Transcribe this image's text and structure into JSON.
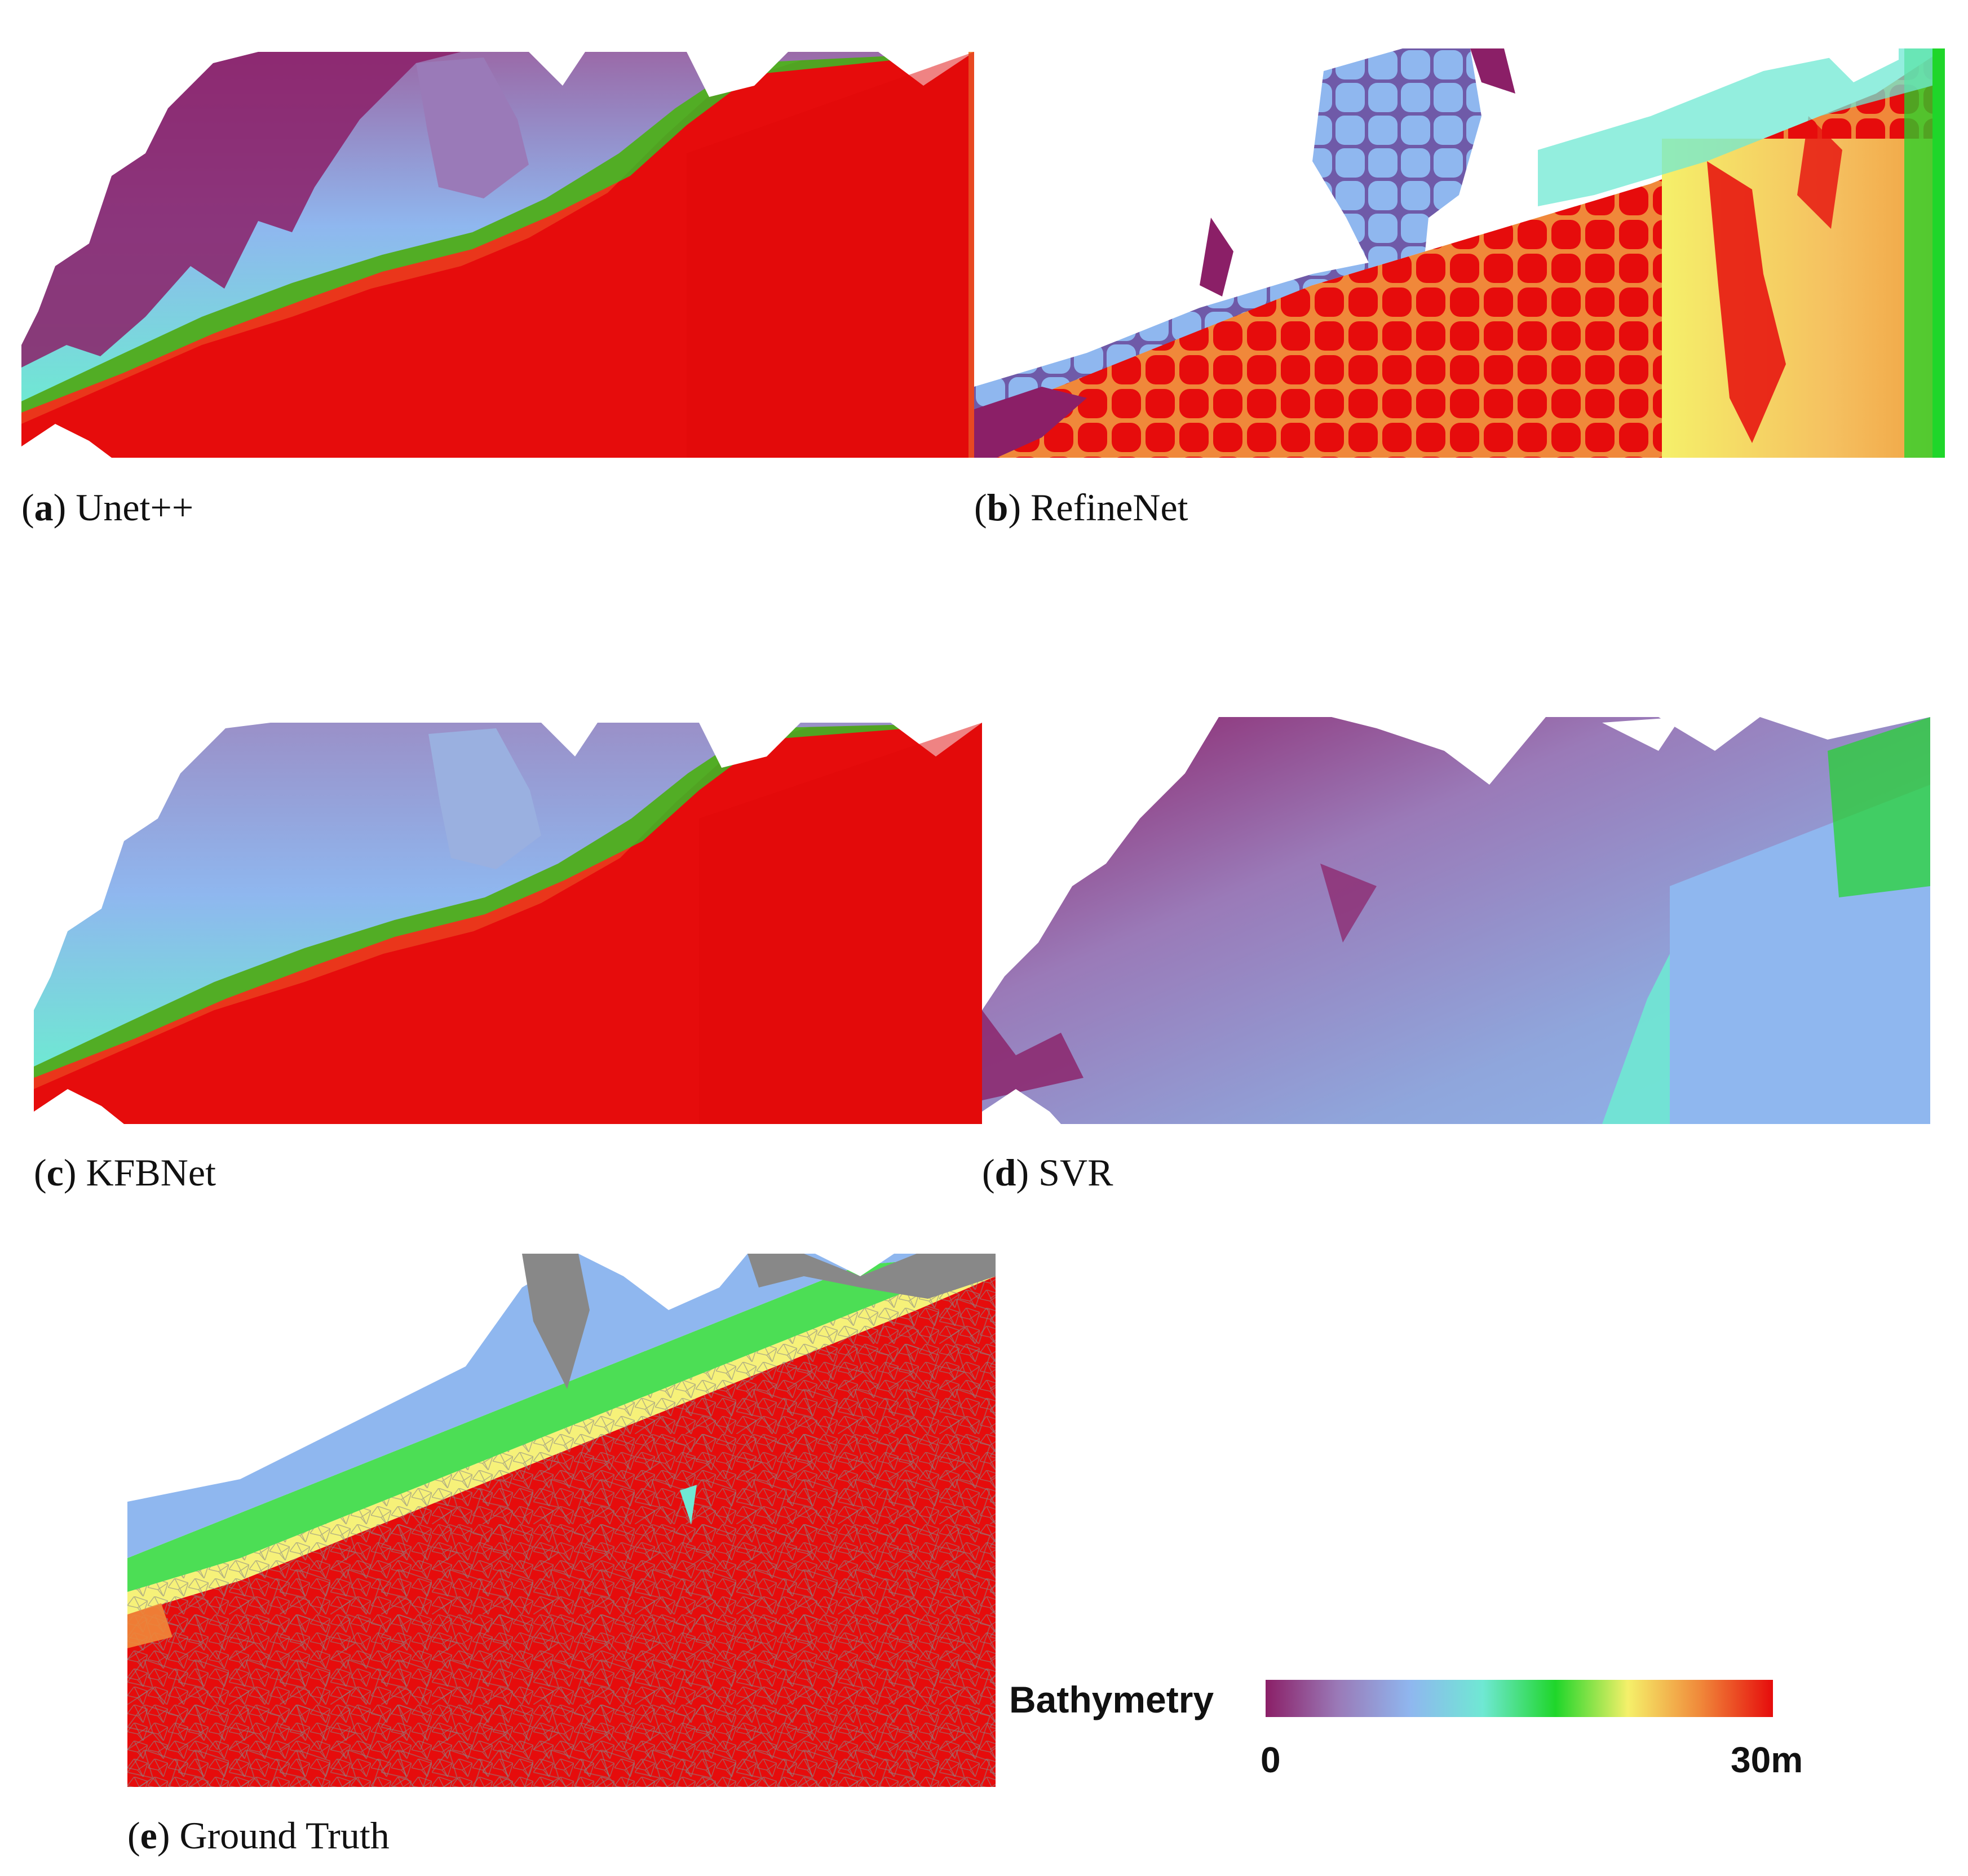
{
  "panels": [
    {
      "letter": "a",
      "name": "Unet++"
    },
    {
      "letter": "b",
      "name": "RefineNet"
    },
    {
      "letter": "c",
      "name": "KFBNet"
    },
    {
      "letter": "d",
      "name": "SVR"
    },
    {
      "letter": "e",
      "name": "Ground Truth"
    }
  ],
  "legend": {
    "title": "Bathymetry",
    "min_label": "0",
    "max_label": "30m",
    "colors": [
      "#8b1f67",
      "#9a7ab8",
      "#8fb7ef",
      "#6fe8d3",
      "#1fd62a",
      "#f5f06a",
      "#f0883a",
      "#e60c0c"
    ]
  },
  "colors": {
    "deep": "#e60c0c",
    "shallow": "#8b1f67",
    "land": "#ffffff"
  }
}
